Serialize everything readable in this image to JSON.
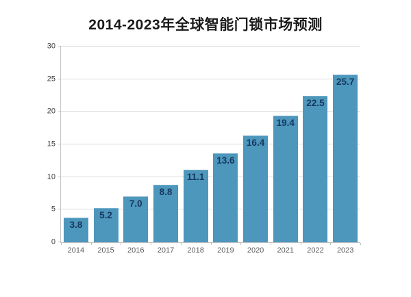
{
  "title": "2014-2023年全球智能门锁市场预测",
  "colors": {
    "background": "#ffffff",
    "bar": "#4d96bc",
    "bar_label": "#17375e",
    "gridline": "#d9d9d9",
    "axis_line": "#bfbfbf",
    "y_tick_text": "#404040",
    "x_tick_text": "#595959",
    "title_text": "#1a1a1a"
  },
  "chart_data": {
    "type": "bar",
    "title": "2014-2023年全球智能门锁市场预测",
    "categories": [
      "2014",
      "2015",
      "2016",
      "2017",
      "2018",
      "2019",
      "2020",
      "2021",
      "2022",
      "2023"
    ],
    "values": [
      3.8,
      5.2,
      7.0,
      8.8,
      11.1,
      13.6,
      16.4,
      19.4,
      22.5,
      25.7
    ],
    "data_labels": [
      "3.8",
      "5.2",
      "7.0",
      "8.8",
      "11.1",
      "13.6",
      "16.4",
      "19.4",
      "22.5",
      "25.7"
    ],
    "xlabel": "",
    "ylabel": "",
    "ylim": [
      0,
      30
    ],
    "yticks": [
      0,
      5,
      10,
      15,
      20,
      25,
      30
    ],
    "grid": true,
    "legend_position": "none"
  }
}
